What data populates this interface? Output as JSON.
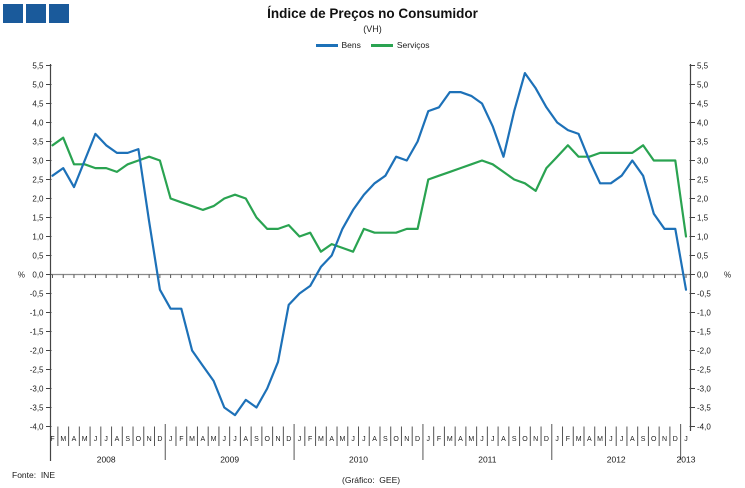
{
  "header": {
    "title": "Índice de Preços no Consumidor",
    "subtitle": "(VH)",
    "logo_color": "#1a5a9b",
    "logo_square_count": 3
  },
  "footer": {
    "source": "Fonte:  INE",
    "credit": "(Gráfico:  GEE)"
  },
  "chart_data": {
    "type": "line",
    "title": "Índice de Preços no Consumidor",
    "subtitle": "(VH)",
    "unit_label": "%",
    "ylim": [
      -4.0,
      5.5
    ],
    "y_tick_step": 0.5,
    "y_tick_labels": [
      "5,5",
      "5,0",
      "4,5",
      "4,0",
      "3,5",
      "3,0",
      "2,5",
      "2,0",
      "1,5",
      "1,0",
      "0,5",
      "0,0",
      "-0,5",
      "-1,0",
      "-1,5",
      "-2,0",
      "-2,5",
      "-3,0",
      "-3,5",
      "-4,0"
    ],
    "y_axis_sides": "both",
    "grid": false,
    "zero_line": true,
    "legend_position": "top",
    "x_years": [
      {
        "label": "2008",
        "months": [
          "F",
          "M",
          "A",
          "M",
          "J",
          "J",
          "A",
          "S",
          "O",
          "N",
          "D"
        ]
      },
      {
        "label": "2009",
        "months": [
          "J",
          "F",
          "M",
          "A",
          "M",
          "J",
          "J",
          "A",
          "S",
          "O",
          "N",
          "D"
        ]
      },
      {
        "label": "2010",
        "months": [
          "J",
          "F",
          "M",
          "A",
          "M",
          "J",
          "J",
          "A",
          "S",
          "O",
          "N",
          "D"
        ]
      },
      {
        "label": "2011",
        "months": [
          "J",
          "F",
          "M",
          "A",
          "M",
          "J",
          "J",
          "A",
          "S",
          "O",
          "N",
          "D"
        ]
      },
      {
        "label": "2012",
        "months": [
          "J",
          "F",
          "M",
          "A",
          "M",
          "J",
          "J",
          "A",
          "S",
          "O",
          "N",
          "D"
        ]
      },
      {
        "label": "2013",
        "months": [
          "J"
        ]
      }
    ],
    "series": [
      {
        "name": "Bens",
        "color": "#1d71b8",
        "values": [
          2.6,
          2.8,
          2.3,
          3.0,
          3.7,
          3.4,
          3.2,
          3.2,
          3.3,
          1.4,
          -0.4,
          -0.9,
          -0.9,
          -2.0,
          -2.4,
          -2.8,
          -3.5,
          -3.7,
          -3.3,
          -3.5,
          -3.0,
          -2.3,
          -0.8,
          -0.5,
          -0.3,
          0.2,
          0.5,
          1.2,
          1.7,
          2.1,
          2.4,
          2.6,
          3.1,
          3.0,
          3.5,
          4.3,
          4.4,
          4.8,
          4.8,
          4.7,
          4.5,
          3.9,
          3.1,
          4.3,
          5.3,
          4.9,
          4.4,
          4.0,
          3.8,
          3.7,
          3.0,
          2.4,
          2.4,
          2.6,
          3.0,
          2.6,
          1.6,
          1.2,
          1.2,
          -0.4
        ]
      },
      {
        "name": "Serviços",
        "color": "#2aa351",
        "values": [
          3.4,
          3.6,
          2.9,
          2.9,
          2.8,
          2.8,
          2.7,
          2.9,
          3.0,
          3.1,
          3.0,
          2.0,
          1.9,
          1.8,
          1.7,
          1.8,
          2.0,
          2.1,
          2.0,
          1.5,
          1.2,
          1.2,
          1.3,
          1.0,
          1.1,
          0.6,
          0.8,
          0.7,
          0.6,
          1.2,
          1.1,
          1.1,
          1.1,
          1.2,
          1.2,
          2.5,
          2.6,
          2.7,
          2.8,
          2.9,
          3.0,
          2.9,
          2.7,
          2.5,
          2.4,
          2.2,
          2.8,
          3.1,
          3.4,
          3.1,
          3.1,
          3.2,
          3.2,
          3.2,
          3.2,
          3.4,
          3.0,
          3.0,
          3.0,
          1.0
        ]
      }
    ]
  }
}
